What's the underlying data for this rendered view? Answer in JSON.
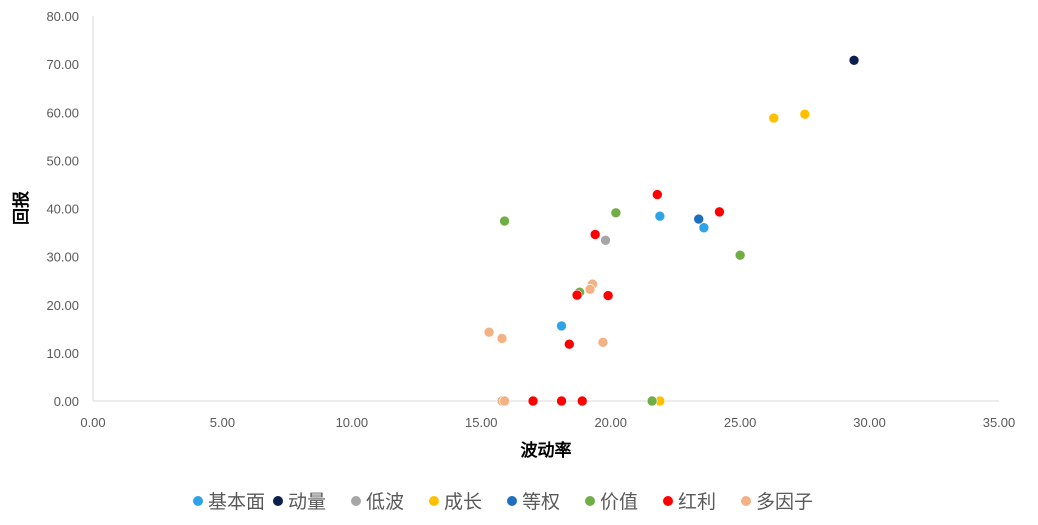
{
  "chart_data": {
    "type": "scatter",
    "title": "",
    "xlabel": "波动率",
    "ylabel": "回报",
    "xlim": [
      0,
      35
    ],
    "ylim": [
      0,
      80
    ],
    "xticks": [
      "0.00",
      "5.00",
      "10.00",
      "15.00",
      "20.00",
      "25.00",
      "30.00",
      "35.00"
    ],
    "yticks": [
      "0.00",
      "10.00",
      "20.00",
      "30.00",
      "40.00",
      "50.00",
      "60.00",
      "70.00",
      "80.00"
    ],
    "grid": false,
    "legend_position": "bottom",
    "series": [
      {
        "name": "基本面",
        "color": "#2ea3e8",
        "x": [
          21.9,
          18.1,
          23.6
        ],
        "y": [
          38.4,
          15.6,
          36.0
        ]
      },
      {
        "name": "动量",
        "color": "#0d1f4f",
        "x": [
          29.4
        ],
        "y": [
          70.8
        ]
      },
      {
        "name": "低波",
        "color": "#a6a6a6",
        "x": [
          19.8
        ],
        "y": [
          33.4
        ]
      },
      {
        "name": "成长",
        "color": "#ffc000",
        "x": [
          27.5,
          26.3,
          21.9
        ],
        "y": [
          59.6,
          58.8,
          0.0
        ]
      },
      {
        "name": "等权",
        "color": "#1f6fbf",
        "x": [
          23.4
        ],
        "y": [
          37.8
        ]
      },
      {
        "name": "价值",
        "color": "#70ad47",
        "x": [
          15.9,
          20.2,
          25.0,
          18.8,
          21.6
        ],
        "y": [
          37.4,
          39.1,
          30.3,
          22.6,
          0.0
        ]
      },
      {
        "name": "红利",
        "color": "#ff0000",
        "x": [
          21.8,
          24.2,
          19.4,
          18.7,
          19.9,
          18.4,
          17.0,
          18.1,
          18.9
        ],
        "y": [
          42.9,
          39.3,
          34.6,
          22.0,
          21.9,
          11.8,
          0.0,
          0.0,
          0.0
        ]
      },
      {
        "name": "多因子",
        "color": "#f4b183",
        "x": [
          15.3,
          15.8,
          19.3,
          19.2,
          19.7,
          15.8,
          15.9
        ],
        "y": [
          14.3,
          13.0,
          24.3,
          23.2,
          12.2,
          0.0,
          0.0
        ]
      }
    ]
  }
}
